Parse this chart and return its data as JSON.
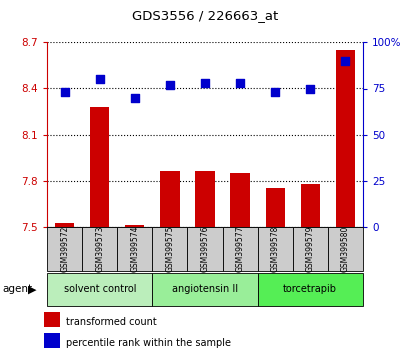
{
  "title": "GDS3556 / 226663_at",
  "samples": [
    "GSM399572",
    "GSM399573",
    "GSM399574",
    "GSM399575",
    "GSM399576",
    "GSM399577",
    "GSM399578",
    "GSM399579",
    "GSM399580"
  ],
  "bar_values": [
    7.52,
    8.28,
    7.51,
    7.86,
    7.86,
    7.85,
    7.75,
    7.78,
    8.65
  ],
  "dot_values": [
    73,
    80,
    70,
    77,
    78,
    78,
    73,
    75,
    90
  ],
  "ylim_left": [
    7.5,
    8.7
  ],
  "ylim_right": [
    0,
    100
  ],
  "yticks_left": [
    7.5,
    7.8,
    8.1,
    8.4,
    8.7
  ],
  "yticks_right": [
    0,
    25,
    50,
    75,
    100
  ],
  "bar_color": "#cc0000",
  "dot_color": "#0000cc",
  "grid_color": "#000000",
  "agent_groups": [
    {
      "label": "solvent control",
      "start": 0,
      "end": 3,
      "color": "#bbeebb"
    },
    {
      "label": "angiotensin II",
      "start": 3,
      "end": 6,
      "color": "#99ee99"
    },
    {
      "label": "torcetrapib",
      "start": 6,
      "end": 9,
      "color": "#55ee55"
    }
  ],
  "left_tick_color": "#cc0000",
  "right_tick_color": "#0000cc",
  "sample_bg_color": "#cccccc",
  "bar_width": 0.55,
  "dot_size": 35,
  "agent_label": "agent",
  "legend_items": [
    {
      "label": "transformed count",
      "color": "#cc0000"
    },
    {
      "label": "percentile rank within the sample",
      "color": "#0000cc"
    }
  ]
}
